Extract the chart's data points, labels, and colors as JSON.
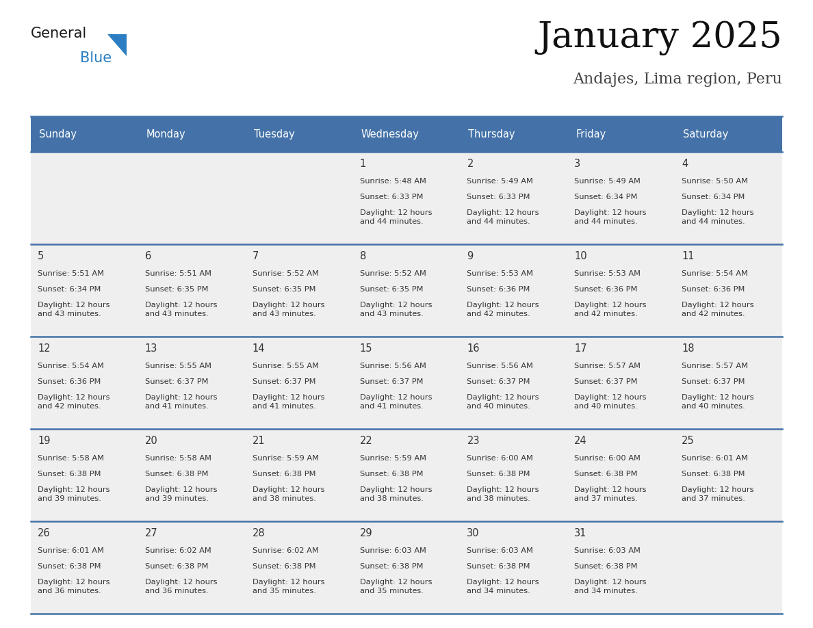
{
  "title": "January 2025",
  "subtitle": "Andajes, Lima region, Peru",
  "header_bg": "#4472A8",
  "header_text": "#FFFFFF",
  "cell_bg": "#EFEFEF",
  "row_separator_color": "#4472A8",
  "text_color": "#333333",
  "days_of_week": [
    "Sunday",
    "Monday",
    "Tuesday",
    "Wednesday",
    "Thursday",
    "Friday",
    "Saturday"
  ],
  "calendar": [
    [
      {
        "day": "",
        "sunrise": "",
        "sunset": "",
        "daylight": ""
      },
      {
        "day": "",
        "sunrise": "",
        "sunset": "",
        "daylight": ""
      },
      {
        "day": "",
        "sunrise": "",
        "sunset": "",
        "daylight": ""
      },
      {
        "day": "1",
        "sunrise": "Sunrise: 5:48 AM",
        "sunset": "Sunset: 6:33 PM",
        "daylight": "Daylight: 12 hours\nand 44 minutes."
      },
      {
        "day": "2",
        "sunrise": "Sunrise: 5:49 AM",
        "sunset": "Sunset: 6:33 PM",
        "daylight": "Daylight: 12 hours\nand 44 minutes."
      },
      {
        "day": "3",
        "sunrise": "Sunrise: 5:49 AM",
        "sunset": "Sunset: 6:34 PM",
        "daylight": "Daylight: 12 hours\nand 44 minutes."
      },
      {
        "day": "4",
        "sunrise": "Sunrise: 5:50 AM",
        "sunset": "Sunset: 6:34 PM",
        "daylight": "Daylight: 12 hours\nand 44 minutes."
      }
    ],
    [
      {
        "day": "5",
        "sunrise": "Sunrise: 5:51 AM",
        "sunset": "Sunset: 6:34 PM",
        "daylight": "Daylight: 12 hours\nand 43 minutes."
      },
      {
        "day": "6",
        "sunrise": "Sunrise: 5:51 AM",
        "sunset": "Sunset: 6:35 PM",
        "daylight": "Daylight: 12 hours\nand 43 minutes."
      },
      {
        "day": "7",
        "sunrise": "Sunrise: 5:52 AM",
        "sunset": "Sunset: 6:35 PM",
        "daylight": "Daylight: 12 hours\nand 43 minutes."
      },
      {
        "day": "8",
        "sunrise": "Sunrise: 5:52 AM",
        "sunset": "Sunset: 6:35 PM",
        "daylight": "Daylight: 12 hours\nand 43 minutes."
      },
      {
        "day": "9",
        "sunrise": "Sunrise: 5:53 AM",
        "sunset": "Sunset: 6:36 PM",
        "daylight": "Daylight: 12 hours\nand 42 minutes."
      },
      {
        "day": "10",
        "sunrise": "Sunrise: 5:53 AM",
        "sunset": "Sunset: 6:36 PM",
        "daylight": "Daylight: 12 hours\nand 42 minutes."
      },
      {
        "day": "11",
        "sunrise": "Sunrise: 5:54 AM",
        "sunset": "Sunset: 6:36 PM",
        "daylight": "Daylight: 12 hours\nand 42 minutes."
      }
    ],
    [
      {
        "day": "12",
        "sunrise": "Sunrise: 5:54 AM",
        "sunset": "Sunset: 6:36 PM",
        "daylight": "Daylight: 12 hours\nand 42 minutes."
      },
      {
        "day": "13",
        "sunrise": "Sunrise: 5:55 AM",
        "sunset": "Sunset: 6:37 PM",
        "daylight": "Daylight: 12 hours\nand 41 minutes."
      },
      {
        "day": "14",
        "sunrise": "Sunrise: 5:55 AM",
        "sunset": "Sunset: 6:37 PM",
        "daylight": "Daylight: 12 hours\nand 41 minutes."
      },
      {
        "day": "15",
        "sunrise": "Sunrise: 5:56 AM",
        "sunset": "Sunset: 6:37 PM",
        "daylight": "Daylight: 12 hours\nand 41 minutes."
      },
      {
        "day": "16",
        "sunrise": "Sunrise: 5:56 AM",
        "sunset": "Sunset: 6:37 PM",
        "daylight": "Daylight: 12 hours\nand 40 minutes."
      },
      {
        "day": "17",
        "sunrise": "Sunrise: 5:57 AM",
        "sunset": "Sunset: 6:37 PM",
        "daylight": "Daylight: 12 hours\nand 40 minutes."
      },
      {
        "day": "18",
        "sunrise": "Sunrise: 5:57 AM",
        "sunset": "Sunset: 6:37 PM",
        "daylight": "Daylight: 12 hours\nand 40 minutes."
      }
    ],
    [
      {
        "day": "19",
        "sunrise": "Sunrise: 5:58 AM",
        "sunset": "Sunset: 6:38 PM",
        "daylight": "Daylight: 12 hours\nand 39 minutes."
      },
      {
        "day": "20",
        "sunrise": "Sunrise: 5:58 AM",
        "sunset": "Sunset: 6:38 PM",
        "daylight": "Daylight: 12 hours\nand 39 minutes."
      },
      {
        "day": "21",
        "sunrise": "Sunrise: 5:59 AM",
        "sunset": "Sunset: 6:38 PM",
        "daylight": "Daylight: 12 hours\nand 38 minutes."
      },
      {
        "day": "22",
        "sunrise": "Sunrise: 5:59 AM",
        "sunset": "Sunset: 6:38 PM",
        "daylight": "Daylight: 12 hours\nand 38 minutes."
      },
      {
        "day": "23",
        "sunrise": "Sunrise: 6:00 AM",
        "sunset": "Sunset: 6:38 PM",
        "daylight": "Daylight: 12 hours\nand 38 minutes."
      },
      {
        "day": "24",
        "sunrise": "Sunrise: 6:00 AM",
        "sunset": "Sunset: 6:38 PM",
        "daylight": "Daylight: 12 hours\nand 37 minutes."
      },
      {
        "day": "25",
        "sunrise": "Sunrise: 6:01 AM",
        "sunset": "Sunset: 6:38 PM",
        "daylight": "Daylight: 12 hours\nand 37 minutes."
      }
    ],
    [
      {
        "day": "26",
        "sunrise": "Sunrise: 6:01 AM",
        "sunset": "Sunset: 6:38 PM",
        "daylight": "Daylight: 12 hours\nand 36 minutes."
      },
      {
        "day": "27",
        "sunrise": "Sunrise: 6:02 AM",
        "sunset": "Sunset: 6:38 PM",
        "daylight": "Daylight: 12 hours\nand 36 minutes."
      },
      {
        "day": "28",
        "sunrise": "Sunrise: 6:02 AM",
        "sunset": "Sunset: 6:38 PM",
        "daylight": "Daylight: 12 hours\nand 35 minutes."
      },
      {
        "day": "29",
        "sunrise": "Sunrise: 6:03 AM",
        "sunset": "Sunset: 6:38 PM",
        "daylight": "Daylight: 12 hours\nand 35 minutes."
      },
      {
        "day": "30",
        "sunrise": "Sunrise: 6:03 AM",
        "sunset": "Sunset: 6:38 PM",
        "daylight": "Daylight: 12 hours\nand 34 minutes."
      },
      {
        "day": "31",
        "sunrise": "Sunrise: 6:03 AM",
        "sunset": "Sunset: 6:38 PM",
        "daylight": "Daylight: 12 hours\nand 34 minutes."
      },
      {
        "day": "",
        "sunrise": "",
        "sunset": "",
        "daylight": ""
      }
    ]
  ],
  "logo_general_color": "#1a1a1a",
  "logo_blue_color": "#2B7EC1",
  "logo_triangle_color": "#2B7EC1",
  "fig_width": 11.88,
  "fig_height": 9.18,
  "dpi": 100
}
